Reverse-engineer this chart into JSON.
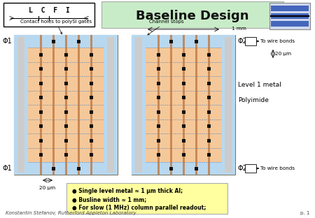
{
  "title": "Baseline Design",
  "header_bg": "#c8ecc8",
  "main_bg": "#ffffff",
  "polyimide_color": "#f5c89a",
  "level1_color": "#b8d8f0",
  "yellow_box_color": "#ffffa0",
  "footer_text": "Konstantin Stefanov, Rutherford Appleton Laboratory",
  "page_text": "p. 1",
  "bullet_lines": [
    "Single level metal ≈ 1 μm thick Al;",
    "Busline width ≈ 1 mm;",
    "For slow (1 MHz) column parallel readout;"
  ],
  "label_contact": "Contact holes to polySi gates",
  "label_channel": "Channel stops",
  "label_1mm": "1 mm",
  "label_20um_top": "20 μm",
  "label_20um_bot": "20 μm",
  "label_phi1_tl": "Φ1",
  "label_phi1_bl": "Φ1",
  "label_phi2_tr": "Φ2",
  "label_phi2_br": "Φ2",
  "label_wire_tr": "To wire bonds",
  "label_wire_br": "To wire bonds",
  "legend_level1": "Level 1 metal",
  "legend_poly": "Polyimide"
}
